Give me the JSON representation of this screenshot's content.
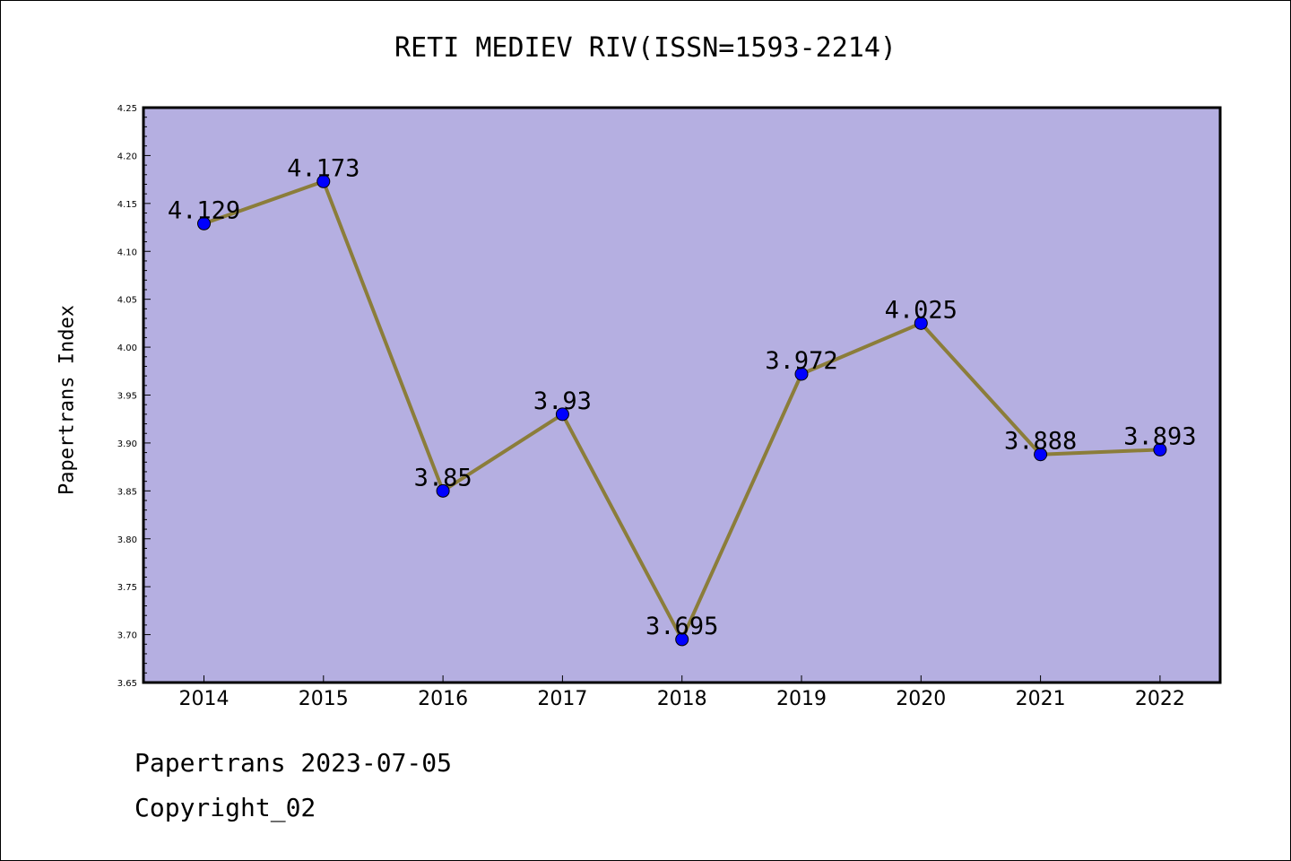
{
  "chart_data": {
    "type": "line",
    "title": "RETI MEDIEV RIV(ISSN=1593-2214)",
    "xlabel": "",
    "ylabel": "Papertrans Index",
    "categories": [
      "2014",
      "2015",
      "2016",
      "2017",
      "2018",
      "2019",
      "2020",
      "2021",
      "2022"
    ],
    "series": [
      {
        "values": [
          4.129,
          4.173,
          3.85,
          3.93,
          3.695,
          3.972,
          4.025,
          3.888,
          3.893
        ],
        "data_labels": [
          "4.129",
          "4.173",
          "3.85",
          "3.93",
          "3.695",
          "3.972",
          "4.025",
          "3.888",
          "3.893"
        ]
      }
    ],
    "ylim": [
      3.65,
      4.25
    ],
    "yticks": [
      "3.65",
      "3.70",
      "3.75",
      "3.80",
      "3.85",
      "3.90",
      "3.95",
      "4.00",
      "4.05",
      "4.10",
      "4.15",
      "4.20",
      "4.25"
    ],
    "grid": false,
    "legend": "none",
    "colors": {
      "plot_background": "#b5afe1",
      "line": "#8b7d3a",
      "marker": "#0000ff"
    }
  },
  "footer": {
    "line1": "Papertrans 2023-07-05",
    "line2": "Copyright_02"
  }
}
